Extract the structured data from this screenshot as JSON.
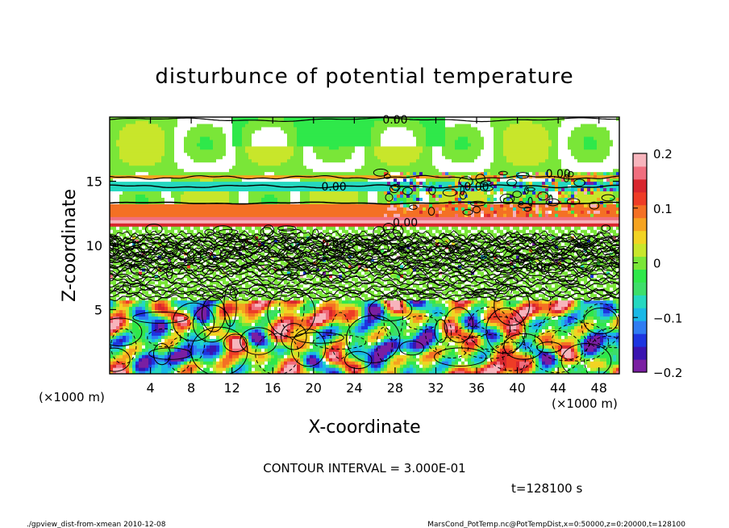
{
  "chart_data": {
    "type": "heatmap",
    "title": "disturbunce of potential temperature",
    "xlabel": "X-coordinate",
    "ylabel": "Z-coordinate",
    "x_unit": "(×1000 m)",
    "z_unit": "(×1000 m)",
    "xlim": [
      0,
      50
    ],
    "ylim": [
      0,
      20
    ],
    "x_ticks": [
      4,
      8,
      12,
      16,
      20,
      24,
      28,
      32,
      36,
      40,
      44,
      48
    ],
    "y_ticks": [
      5,
      10,
      15
    ],
    "colorbar": {
      "range": [
        -0.2,
        0.2
      ],
      "ticks": [
        "0.2",
        "0.1",
        "0",
        "−0.1",
        "−0.2"
      ],
      "colors": [
        "#7a1fa2",
        "#3a14b0",
        "#1d35e0",
        "#2f7cf2",
        "#19b8e6",
        "#25d8c0",
        "#3dde6a",
        "#2fe84a",
        "#7ae638",
        "#c8e62b",
        "#f2d323",
        "#f5a320",
        "#f47024",
        "#ee3c26",
        "#d8262e",
        "#f06e7e",
        "#f7b4bc"
      ]
    },
    "contour_labels": [
      "0.00",
      "0.00",
      "0.00",
      "0.00",
      "0.00",
      "0.00",
      "0.00"
    ],
    "contour_interval_text": "CONTOUR INTERVAL = 3.000E-01",
    "time_text": "t=128100 s",
    "grid": false
  },
  "footer": {
    "left": "./gpview_dist-from-xmean  2010-12-08",
    "right": "MarsCond_PotTemp.nc@PotTempDist,x=0:50000,z=0:20000,t=128100"
  }
}
